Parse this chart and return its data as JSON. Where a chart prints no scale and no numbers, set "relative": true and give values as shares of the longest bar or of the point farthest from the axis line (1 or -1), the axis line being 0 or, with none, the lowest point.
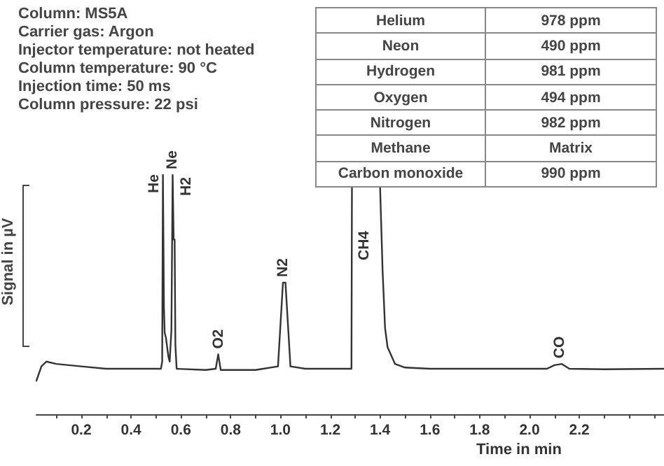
{
  "chart_data": {
    "type": "line",
    "relative": true,
    "xlabel": "Time in min",
    "ylabel": "Signal in µV",
    "marker": "none",
    "tick_labels": "x",
    "grid": false,
    "xlim": [
      0.02,
      2.54
    ],
    "xticks": [
      {
        "value": 0.1,
        "label": null
      },
      0.2,
      {
        "value": 0.3,
        "label": null
      },
      0.4,
      {
        "value": 0.5,
        "label": null
      },
      0.6,
      {
        "value": 0.7,
        "label": null
      },
      0.8,
      {
        "value": 0.9,
        "label": null
      },
      {
        "value": 1.0,
        "label": "1.0"
      },
      {
        "value": 1.1,
        "label": null
      },
      1.2,
      {
        "value": 1.3,
        "label": null
      },
      1.4,
      {
        "value": 1.5,
        "label": null
      },
      1.6,
      {
        "value": 1.7,
        "label": null
      },
      1.8,
      {
        "value": 1.9,
        "label": null
      },
      {
        "value": 2.0,
        "label": "2.0"
      },
      {
        "value": 2.1,
        "label": null
      },
      2.2,
      {
        "value": 2.3,
        "label": null
      },
      {
        "value": 2.4,
        "label": null
      },
      {
        "value": 2.5,
        "label": null
      }
    ],
    "x": [
      0.02,
      0.04,
      0.06,
      0.1,
      0.2,
      0.3,
      0.4,
      0.52,
      0.525,
      0.528,
      0.532,
      0.535,
      0.54,
      0.55,
      0.555,
      0.562,
      0.567,
      0.571,
      0.575,
      0.578,
      0.583,
      0.7,
      0.74,
      0.75,
      0.76,
      0.9,
      0.99,
      1.01,
      1.02,
      1.04,
      1.1,
      1.28,
      1.285,
      1.287,
      1.34,
      1.4,
      1.41,
      1.42,
      1.43,
      1.46,
      1.5,
      1.6,
      2.0,
      2.07,
      2.1,
      2.13,
      2.16,
      2.3,
      2.54
    ],
    "series": [
      {
        "color": "#333333",
        "values": [
          0.14,
          0.2,
          0.22,
          0.21,
          0.2,
          0.19,
          0.19,
          0.19,
          0.22,
          1.0,
          0.45,
          0.34,
          0.32,
          0.24,
          0.22,
          0.35,
          1.0,
          0.73,
          0.73,
          0.29,
          0.19,
          0.185,
          0.19,
          0.25,
          0.185,
          0.185,
          0.2,
          0.55,
          0.55,
          0.2,
          0.19,
          0.19,
          0.19,
          0.95,
          null,
          0.95,
          0.6,
          0.36,
          0.28,
          0.21,
          0.195,
          0.19,
          0.19,
          0.19,
          0.205,
          0.21,
          0.19,
          0.188,
          0.19
        ]
      }
    ],
    "annotations": [
      {
        "text": "Ne",
        "x": 0.567,
        "y": 1.0
      },
      {
        "text": "O2",
        "x": 0.75,
        "y": 0.25
      },
      {
        "text": "N2",
        "x": 1.01,
        "y": 0.55
      },
      {
        "text": "CO",
        "x": 2.12,
        "y": 0.21
      },
      "He",
      "H2",
      "CH4",
      "Column: MS5A\nCarrier gas: Argon\nInjector temperature: not heated\nColumn temperature: 90 °C\nInjection time: 50 ms\nColumn pressure: 22 psi",
      "Helium",
      "978 ppm",
      "Neon",
      "490 ppm",
      "Hydrogen",
      "981 ppm",
      "Oxygen",
      "494 ppm",
      "Nitrogen",
      "982 ppm",
      "Methane",
      "Matrix",
      "Carbon monoxide",
      "990 ppm"
    ]
  }
}
